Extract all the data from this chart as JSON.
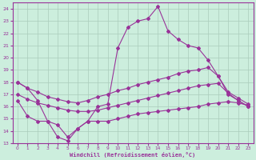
{
  "xlabel": "Windchill (Refroidissement éolien,°C)",
  "bg_color": "#cceedd",
  "grid_color": "#aaccbb",
  "line_color": "#993399",
  "xlim": [
    -0.5,
    23.5
  ],
  "ylim": [
    13,
    24.5
  ],
  "xticks": [
    0,
    1,
    2,
    3,
    4,
    5,
    6,
    7,
    8,
    9,
    10,
    11,
    12,
    13,
    14,
    15,
    16,
    17,
    18,
    19,
    20,
    21,
    22,
    23
  ],
  "yticks": [
    13,
    14,
    15,
    16,
    17,
    18,
    19,
    20,
    21,
    22,
    23,
    24
  ],
  "line1_x": [
    0,
    1,
    2,
    3,
    4,
    5,
    6,
    7,
    8,
    9,
    10,
    11,
    12,
    13,
    14,
    15,
    16,
    17,
    18,
    19,
    20,
    21,
    22,
    23
  ],
  "line1_y": [
    18.0,
    17.5,
    16.5,
    14.8,
    13.5,
    13.2,
    14.2,
    14.8,
    16.0,
    16.2,
    20.8,
    22.5,
    23.0,
    23.2,
    24.2,
    22.2,
    21.5,
    21.0,
    20.8,
    19.8,
    18.5,
    17.0,
    16.5,
    16.0
  ],
  "line2_x": [
    0,
    1,
    2,
    3,
    4,
    5,
    6,
    7,
    8,
    9,
    10,
    11,
    12,
    13,
    14,
    15,
    16,
    17,
    18,
    19,
    20,
    21,
    22,
    23
  ],
  "line2_y": [
    18.0,
    17.5,
    17.2,
    16.8,
    16.6,
    16.4,
    16.3,
    16.5,
    16.8,
    17.0,
    17.3,
    17.5,
    17.8,
    18.0,
    18.2,
    18.4,
    18.7,
    18.9,
    19.0,
    19.2,
    18.5,
    17.2,
    16.7,
    16.2
  ],
  "line3_x": [
    0,
    1,
    2,
    3,
    4,
    5,
    6,
    7,
    8,
    9,
    10,
    11,
    12,
    13,
    14,
    15,
    16,
    17,
    18,
    19,
    20,
    21,
    22,
    23
  ],
  "line3_y": [
    17.0,
    16.6,
    16.3,
    16.1,
    15.9,
    15.7,
    15.6,
    15.6,
    15.7,
    15.9,
    16.1,
    16.3,
    16.5,
    16.7,
    16.9,
    17.1,
    17.3,
    17.5,
    17.7,
    17.8,
    17.9,
    17.1,
    16.5,
    16.0
  ],
  "line4_x": [
    0,
    1,
    2,
    3,
    4,
    5,
    6,
    7,
    8,
    9,
    10,
    11,
    12,
    13,
    14,
    15,
    16,
    17,
    18,
    19,
    20,
    21,
    22,
    23
  ],
  "line4_y": [
    16.5,
    15.2,
    14.8,
    14.8,
    14.5,
    13.5,
    14.2,
    14.8,
    14.8,
    14.8,
    15.0,
    15.2,
    15.4,
    15.5,
    15.6,
    15.7,
    15.8,
    15.9,
    16.0,
    16.2,
    16.3,
    16.4,
    16.3,
    16.1
  ]
}
